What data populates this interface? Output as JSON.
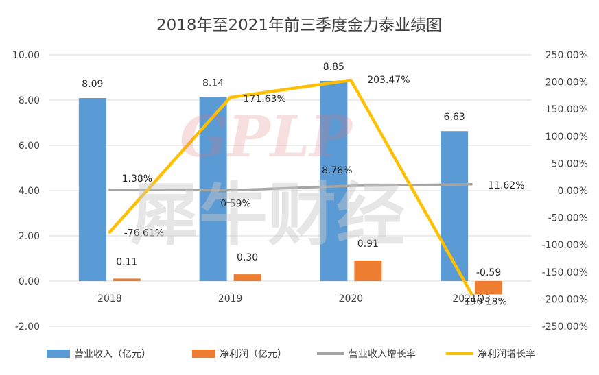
{
  "chart_data": {
    "type": "bar",
    "title": "2018年至2021年前三季度金力泰业绩图",
    "categories": [
      "2018",
      "2019",
      "2020",
      "2021Q3"
    ],
    "series": [
      {
        "name": "营业收入（亿元）",
        "kind": "bar",
        "axis": "left",
        "color": "#5b9bd5",
        "values": [
          8.09,
          8.14,
          8.85,
          6.63
        ],
        "labels": [
          "8.09",
          "8.14",
          "8.85",
          "6.63"
        ]
      },
      {
        "name": "净利润（亿元）",
        "kind": "bar",
        "axis": "left",
        "color": "#ed7d31",
        "values": [
          0.11,
          0.3,
          0.91,
          -0.59
        ],
        "labels": [
          "0.11",
          "0.30",
          "0.91",
          "-0.59"
        ]
      },
      {
        "name": "营业收入增长率",
        "kind": "line",
        "axis": "right",
        "color": "#a5a5a5",
        "values": [
          1.38,
          0.59,
          8.78,
          11.62
        ],
        "labels": [
          "1.38%",
          "0.59%",
          "8.78%",
          "11.62%"
        ]
      },
      {
        "name": "净利润增长率",
        "kind": "line",
        "axis": "right",
        "color": "#ffc000",
        "values": [
          -76.61,
          171.63,
          203.47,
          -190.18
        ],
        "labels": [
          "-76.61%",
          "171.63%",
          "203.47%",
          "-190.18%"
        ]
      }
    ],
    "y_left": {
      "min": -2,
      "max": 10,
      "step": 2,
      "ticks": [
        "10.00",
        "8.00",
        "6.00",
        "4.00",
        "2.00",
        "0.00",
        "-2.00"
      ]
    },
    "y_right": {
      "min": -250,
      "max": 250,
      "step": 50,
      "ticks": [
        "250.00%",
        "200.00%",
        "150.00%",
        "100.00%",
        "50.00%",
        "0.00%",
        "-50.00%",
        "-100.00%",
        "-150.00%",
        "-200.00%",
        "-250.00%"
      ]
    },
    "grid": true,
    "legend": "bottom"
  },
  "watermark": {
    "latin": "GPLP",
    "chinese": "犀牛财经"
  }
}
